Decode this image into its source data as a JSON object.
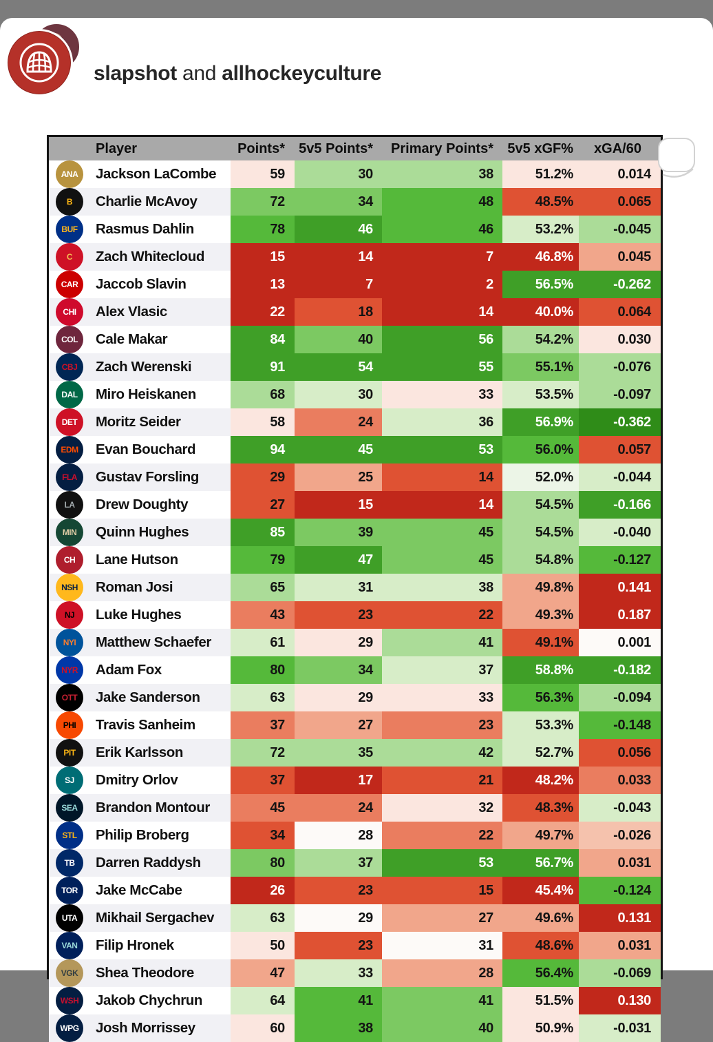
{
  "post": {
    "author_primary": "slapshot",
    "author_connector": " and ",
    "author_secondary": "allhockeyculture"
  },
  "colors": {
    "page_background": "#7c7c7c",
    "sheet_background": "#ffffff",
    "header_bg": "#a9a9a9",
    "row_stripe": "#f1f1f5",
    "table_border": "#141414",
    "accent_red": "#c1281b",
    "accent_green": "#3f9f27"
  },
  "table": {
    "columns": [
      "Player",
      "Points*",
      "5v5 Points*",
      "Primary Points*",
      "5v5 xGF%",
      "xGA/60"
    ],
    "palette": {
      "R5": {
        "bg": "#c1281b",
        "fg": "#ffffff"
      },
      "R4": {
        "bg": "#df5233",
        "fg": "#141414"
      },
      "R3": {
        "bg": "#ea7d5f",
        "fg": "#141414"
      },
      "R2": {
        "bg": "#f1a68b",
        "fg": "#141414"
      },
      "R1": {
        "bg": "#f5c2ad",
        "fg": "#141414"
      },
      "R0": {
        "bg": "#fbe6df",
        "fg": "#141414"
      },
      "W": {
        "bg": "#fdfaf8",
        "fg": "#141414"
      },
      "G0": {
        "bg": "#ecf5e7",
        "fg": "#141414"
      },
      "G1": {
        "bg": "#d7edc8",
        "fg": "#141414"
      },
      "G2": {
        "bg": "#abdc98",
        "fg": "#141414"
      },
      "G3": {
        "bg": "#7cc962",
        "fg": "#141414"
      },
      "G4": {
        "bg": "#55b93a",
        "fg": "#141414"
      },
      "G5": {
        "bg": "#3f9f27",
        "fg": "#ffffff"
      },
      "G6": {
        "bg": "#2f8c18",
        "fg": "#ffffff"
      }
    },
    "rows": [
      {
        "team": "Anaheim Ducks",
        "abbr": "ANA",
        "bg": "#b8933e",
        "fg": "#ffffff",
        "player": "Jackson LaCombe",
        "cells": [
          [
            "59",
            "R0"
          ],
          [
            "30",
            "G2"
          ],
          [
            "38",
            "G2"
          ],
          [
            "51.2%",
            "R0"
          ],
          [
            "0.014",
            "R0"
          ]
        ]
      },
      {
        "team": "Boston Bruins",
        "abbr": "B",
        "bg": "#111111",
        "fg": "#fcb514",
        "player": "Charlie McAvoy",
        "cells": [
          [
            "72",
            "G3"
          ],
          [
            "34",
            "G3"
          ],
          [
            "48",
            "G4"
          ],
          [
            "48.5%",
            "R4"
          ],
          [
            "0.065",
            "R4"
          ]
        ]
      },
      {
        "team": "Buffalo Sabres",
        "abbr": "BUF",
        "bg": "#003087",
        "fg": "#ffb81c",
        "player": "Rasmus Dahlin",
        "cells": [
          [
            "78",
            "G4"
          ],
          [
            "46",
            "G5"
          ],
          [
            "46",
            "G4"
          ],
          [
            "53.2%",
            "G1"
          ],
          [
            "-0.045",
            "G2"
          ]
        ]
      },
      {
        "team": "Calgary Flames",
        "abbr": "C",
        "bg": "#ce1126",
        "fg": "#f3bc52",
        "player": "Zach Whitecloud",
        "cells": [
          [
            "15",
            "R5"
          ],
          [
            "14",
            "R5"
          ],
          [
            "7",
            "R5"
          ],
          [
            "46.8%",
            "R5"
          ],
          [
            "0.045",
            "R2"
          ]
        ]
      },
      {
        "team": "Carolina Hurricanes",
        "abbr": "CAR",
        "bg": "#cc0000",
        "fg": "#ffffff",
        "player": "Jaccob Slavin",
        "cells": [
          [
            "13",
            "R5"
          ],
          [
            "7",
            "R5"
          ],
          [
            "2",
            "R5"
          ],
          [
            "56.5%",
            "G5"
          ],
          [
            "-0.262",
            "G5"
          ]
        ]
      },
      {
        "team": "Chicago Blackhawks",
        "abbr": "CHI",
        "bg": "#cf0a2c",
        "fg": "#ffffff",
        "player": "Alex Vlasic",
        "cells": [
          [
            "22",
            "R5"
          ],
          [
            "18",
            "R4"
          ],
          [
            "14",
            "R5"
          ],
          [
            "40.0%",
            "R5"
          ],
          [
            "0.064",
            "R4"
          ]
        ]
      },
      {
        "team": "Colorado Avalanche",
        "abbr": "COL",
        "bg": "#6f263d",
        "fg": "#ffffff",
        "player": "Cale Makar",
        "cells": [
          [
            "84",
            "G5"
          ],
          [
            "40",
            "G3"
          ],
          [
            "56",
            "G5"
          ],
          [
            "54.2%",
            "G2"
          ],
          [
            "0.030",
            "R0"
          ]
        ]
      },
      {
        "team": "Columbus Blue Jackets",
        "abbr": "CBJ",
        "bg": "#002654",
        "fg": "#ce1126",
        "player": "Zach Werenski",
        "cells": [
          [
            "91",
            "G5"
          ],
          [
            "54",
            "G5"
          ],
          [
            "55",
            "G5"
          ],
          [
            "55.1%",
            "G3"
          ],
          [
            "-0.076",
            "G2"
          ]
        ]
      },
      {
        "team": "Dallas Stars",
        "abbr": "DAL",
        "bg": "#006847",
        "fg": "#ffffff",
        "player": "Miro Heiskanen",
        "cells": [
          [
            "68",
            "G2"
          ],
          [
            "30",
            "G1"
          ],
          [
            "33",
            "R0"
          ],
          [
            "53.5%",
            "G1"
          ],
          [
            "-0.097",
            "G2"
          ]
        ]
      },
      {
        "team": "Detroit Red Wings",
        "abbr": "DET",
        "bg": "#ce1126",
        "fg": "#ffffff",
        "player": "Moritz Seider",
        "cells": [
          [
            "58",
            "R0"
          ],
          [
            "24",
            "R3"
          ],
          [
            "36",
            "G1"
          ],
          [
            "56.9%",
            "G5"
          ],
          [
            "-0.362",
            "G6"
          ]
        ]
      },
      {
        "team": "Edmonton Oilers",
        "abbr": "EDM",
        "bg": "#041e42",
        "fg": "#ff4c00",
        "player": "Evan Bouchard",
        "cells": [
          [
            "94",
            "G5"
          ],
          [
            "45",
            "G5"
          ],
          [
            "53",
            "G5"
          ],
          [
            "56.0%",
            "G4"
          ],
          [
            "0.057",
            "R4"
          ]
        ]
      },
      {
        "team": "Florida Panthers",
        "abbr": "FLA",
        "bg": "#041e42",
        "fg": "#c8102e",
        "player": "Gustav Forsling",
        "cells": [
          [
            "29",
            "R4"
          ],
          [
            "25",
            "R2"
          ],
          [
            "14",
            "R4"
          ],
          [
            "52.0%",
            "G0"
          ],
          [
            "-0.044",
            "G1"
          ]
        ]
      },
      {
        "team": "Los Angeles Kings",
        "abbr": "LA",
        "bg": "#111111",
        "fg": "#a2aaad",
        "player": "Drew Doughty",
        "cells": [
          [
            "27",
            "R4"
          ],
          [
            "15",
            "R5"
          ],
          [
            "14",
            "R5"
          ],
          [
            "54.5%",
            "G2"
          ],
          [
            "-0.166",
            "G5"
          ]
        ]
      },
      {
        "team": "Minnesota Wild",
        "abbr": "MIN",
        "bg": "#154734",
        "fg": "#ddcba4",
        "player": "Quinn Hughes",
        "cells": [
          [
            "85",
            "G5"
          ],
          [
            "39",
            "G3"
          ],
          [
            "45",
            "G3"
          ],
          [
            "54.5%",
            "G2"
          ],
          [
            "-0.040",
            "G1"
          ]
        ]
      },
      {
        "team": "Montreal Canadiens",
        "abbr": "CH",
        "bg": "#af1e2d",
        "fg": "#ffffff",
        "player": "Lane Hutson",
        "cells": [
          [
            "79",
            "G4"
          ],
          [
            "47",
            "G5"
          ],
          [
            "45",
            "G3"
          ],
          [
            "54.8%",
            "G2"
          ],
          [
            "-0.127",
            "G4"
          ]
        ]
      },
      {
        "team": "Nashville Predators",
        "abbr": "NSH",
        "bg": "#ffb81c",
        "fg": "#041e42",
        "player": "Roman Josi",
        "cells": [
          [
            "65",
            "G2"
          ],
          [
            "31",
            "G1"
          ],
          [
            "38",
            "G1"
          ],
          [
            "49.8%",
            "R2"
          ],
          [
            "0.141",
            "R5"
          ]
        ]
      },
      {
        "team": "New Jersey Devils",
        "abbr": "NJ",
        "bg": "#ce1126",
        "fg": "#000000",
        "player": "Luke Hughes",
        "cells": [
          [
            "43",
            "R3"
          ],
          [
            "23",
            "R4"
          ],
          [
            "22",
            "R4"
          ],
          [
            "49.3%",
            "R2"
          ],
          [
            "0.187",
            "R5"
          ]
        ]
      },
      {
        "team": "New York Islanders",
        "abbr": "NYI",
        "bg": "#00539b",
        "fg": "#f47d30",
        "player": "Matthew Schaefer",
        "cells": [
          [
            "61",
            "G1"
          ],
          [
            "29",
            "R0"
          ],
          [
            "41",
            "G2"
          ],
          [
            "49.1%",
            "R4"
          ],
          [
            "0.001",
            "W"
          ]
        ]
      },
      {
        "team": "New York Rangers",
        "abbr": "NYR",
        "bg": "#0038a8",
        "fg": "#ce1126",
        "player": "Adam Fox",
        "cells": [
          [
            "80",
            "G4"
          ],
          [
            "34",
            "G3"
          ],
          [
            "37",
            "G1"
          ],
          [
            "58.8%",
            "G5"
          ],
          [
            "-0.182",
            "G5"
          ]
        ]
      },
      {
        "team": "Ottawa Senators",
        "abbr": "OTT",
        "bg": "#000000",
        "fg": "#c52032",
        "player": "Jake Sanderson",
        "cells": [
          [
            "63",
            "G1"
          ],
          [
            "29",
            "R0"
          ],
          [
            "33",
            "R0"
          ],
          [
            "56.3%",
            "G4"
          ],
          [
            "-0.094",
            "G2"
          ]
        ]
      },
      {
        "team": "Philadelphia Flyers",
        "abbr": "PHI",
        "bg": "#f74902",
        "fg": "#000000",
        "player": "Travis Sanheim",
        "cells": [
          [
            "37",
            "R3"
          ],
          [
            "27",
            "R2"
          ],
          [
            "23",
            "R3"
          ],
          [
            "53.3%",
            "G1"
          ],
          [
            "-0.148",
            "G4"
          ]
        ]
      },
      {
        "team": "Pittsburgh Penguins",
        "abbr": "PIT",
        "bg": "#111111",
        "fg": "#fcb514",
        "player": "Erik Karlsson",
        "cells": [
          [
            "72",
            "G2"
          ],
          [
            "35",
            "G2"
          ],
          [
            "42",
            "G2"
          ],
          [
            "52.7%",
            "G1"
          ],
          [
            "0.056",
            "R4"
          ]
        ]
      },
      {
        "team": "San Jose Sharks",
        "abbr": "SJ",
        "bg": "#006d75",
        "fg": "#ffffff",
        "player": "Dmitry Orlov",
        "cells": [
          [
            "37",
            "R4"
          ],
          [
            "17",
            "R5"
          ],
          [
            "21",
            "R4"
          ],
          [
            "48.2%",
            "R5"
          ],
          [
            "0.033",
            "R3"
          ]
        ]
      },
      {
        "team": "Seattle Kraken",
        "abbr": "SEA",
        "bg": "#001628",
        "fg": "#99d9d9",
        "player": "Brandon Montour",
        "cells": [
          [
            "45",
            "R3"
          ],
          [
            "24",
            "R3"
          ],
          [
            "32",
            "R0"
          ],
          [
            "48.3%",
            "R4"
          ],
          [
            "-0.043",
            "G1"
          ]
        ]
      },
      {
        "team": "St. Louis Blues",
        "abbr": "STL",
        "bg": "#002f87",
        "fg": "#fcb514",
        "player": "Philip Broberg",
        "cells": [
          [
            "34",
            "R4"
          ],
          [
            "28",
            "W"
          ],
          [
            "22",
            "R3"
          ],
          [
            "49.7%",
            "R2"
          ],
          [
            "-0.026",
            "R1"
          ]
        ]
      },
      {
        "team": "Tampa Bay Lightning",
        "abbr": "TB",
        "bg": "#002868",
        "fg": "#ffffff",
        "player": "Darren Raddysh",
        "cells": [
          [
            "80",
            "G3"
          ],
          [
            "37",
            "G2"
          ],
          [
            "53",
            "G5"
          ],
          [
            "56.7%",
            "G5"
          ],
          [
            "0.031",
            "R2"
          ]
        ]
      },
      {
        "team": "Toronto Maple Leafs",
        "abbr": "TOR",
        "bg": "#00205b",
        "fg": "#ffffff",
        "player": "Jake McCabe",
        "cells": [
          [
            "26",
            "R5"
          ],
          [
            "23",
            "R4"
          ],
          [
            "15",
            "R4"
          ],
          [
            "45.4%",
            "R5"
          ],
          [
            "-0.124",
            "G4"
          ]
        ]
      },
      {
        "team": "Utah Mammoth",
        "abbr": "UTA",
        "bg": "#010101",
        "fg": "#ffffff",
        "player": "Mikhail Sergachev",
        "cells": [
          [
            "63",
            "G1"
          ],
          [
            "29",
            "W"
          ],
          [
            "27",
            "R2"
          ],
          [
            "49.6%",
            "R2"
          ],
          [
            "0.131",
            "R5"
          ]
        ]
      },
      {
        "team": "Vancouver Canucks",
        "abbr": "VAN",
        "bg": "#00205b",
        "fg": "#99d9d9",
        "player": "Filip Hronek",
        "cells": [
          [
            "50",
            "R0"
          ],
          [
            "23",
            "R4"
          ],
          [
            "31",
            "W"
          ],
          [
            "48.6%",
            "R4"
          ],
          [
            "0.031",
            "R2"
          ]
        ]
      },
      {
        "team": "Vegas Golden Knights",
        "abbr": "VGK",
        "bg": "#b4975a",
        "fg": "#333f42",
        "player": "Shea Theodore",
        "cells": [
          [
            "47",
            "R2"
          ],
          [
            "33",
            "G1"
          ],
          [
            "28",
            "R2"
          ],
          [
            "56.4%",
            "G4"
          ],
          [
            "-0.069",
            "G2"
          ]
        ]
      },
      {
        "team": "Washington Capitals",
        "abbr": "WSH",
        "bg": "#041e42",
        "fg": "#c8102e",
        "player": "Jakob Chychrun",
        "cells": [
          [
            "64",
            "G1"
          ],
          [
            "41",
            "G4"
          ],
          [
            "41",
            "G3"
          ],
          [
            "51.5%",
            "R0"
          ],
          [
            "0.130",
            "R5"
          ]
        ]
      },
      {
        "team": "Winnipeg Jets",
        "abbr": "WPG",
        "bg": "#041e42",
        "fg": "#ffffff",
        "player": "Josh Morrissey",
        "cells": [
          [
            "60",
            "R0"
          ],
          [
            "38",
            "G4"
          ],
          [
            "40",
            "G3"
          ],
          [
            "50.9%",
            "R0"
          ],
          [
            "-0.031",
            "G1"
          ]
        ]
      }
    ]
  }
}
